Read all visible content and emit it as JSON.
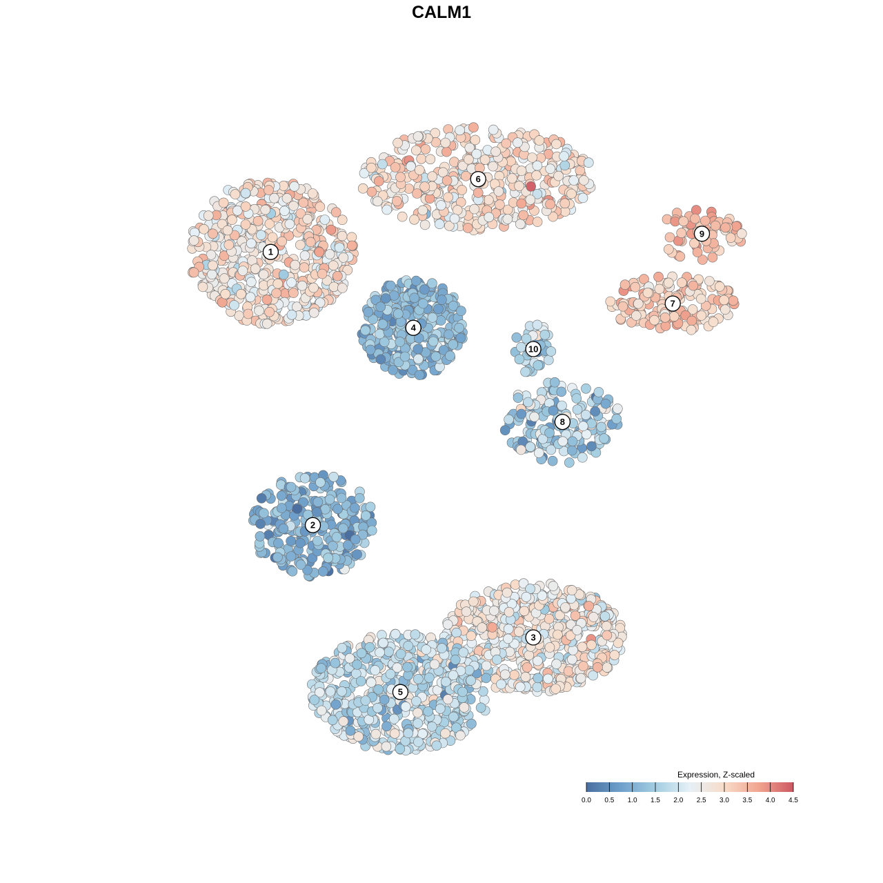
{
  "chart_data": {
    "type": "scatter",
    "title": "CALM1",
    "xlabel": "",
    "ylabel": "",
    "grid": false,
    "color_scale": {
      "title": "Expression, Z-scaled",
      "min": 0.0,
      "max": 4.5,
      "ticks": [
        "0.0",
        "0.5",
        "1.0",
        "1.5",
        "2.0",
        "2.5",
        "3.0",
        "3.5",
        "4.0",
        "4.5"
      ],
      "colors": [
        "#4a6fa0",
        "#6fa0cb",
        "#a3cde1",
        "#e6f0f6",
        "#f8dcc9",
        "#f1a48f",
        "#cd5763"
      ],
      "placement": "bottom-right"
    },
    "clusters": [
      {
        "label": "1",
        "x": -0.58,
        "y": 0.62,
        "mean": 2.75,
        "sd": 0.45,
        "n": 520
      },
      {
        "label": "6",
        "x": 0.06,
        "y": 0.86,
        "mean": 2.85,
        "sd": 0.45,
        "n": 430
      },
      {
        "label": "9",
        "x": 0.75,
        "y": 0.68,
        "mean": 3.4,
        "sd": 0.35,
        "n": 60
      },
      {
        "label": "7",
        "x": 0.66,
        "y": 0.45,
        "mean": 3.2,
        "sd": 0.35,
        "n": 150
      },
      {
        "label": "4",
        "x": -0.14,
        "y": 0.37,
        "mean": 1.2,
        "sd": 0.35,
        "n": 300
      },
      {
        "label": "10",
        "x": 0.23,
        "y": 0.3,
        "mean": 1.7,
        "sd": 0.45,
        "n": 45
      },
      {
        "label": "8",
        "x": 0.32,
        "y": 0.06,
        "mean": 1.6,
        "sd": 0.6,
        "n": 180
      },
      {
        "label": "2",
        "x": -0.45,
        "y": -0.28,
        "mean": 1.1,
        "sd": 0.45,
        "n": 240
      },
      {
        "label": "3",
        "x": 0.23,
        "y": -0.65,
        "mean": 2.6,
        "sd": 0.45,
        "n": 620
      },
      {
        "label": "5",
        "x": -0.18,
        "y": -0.83,
        "mean": 1.8,
        "sd": 0.45,
        "n": 520
      }
    ]
  }
}
